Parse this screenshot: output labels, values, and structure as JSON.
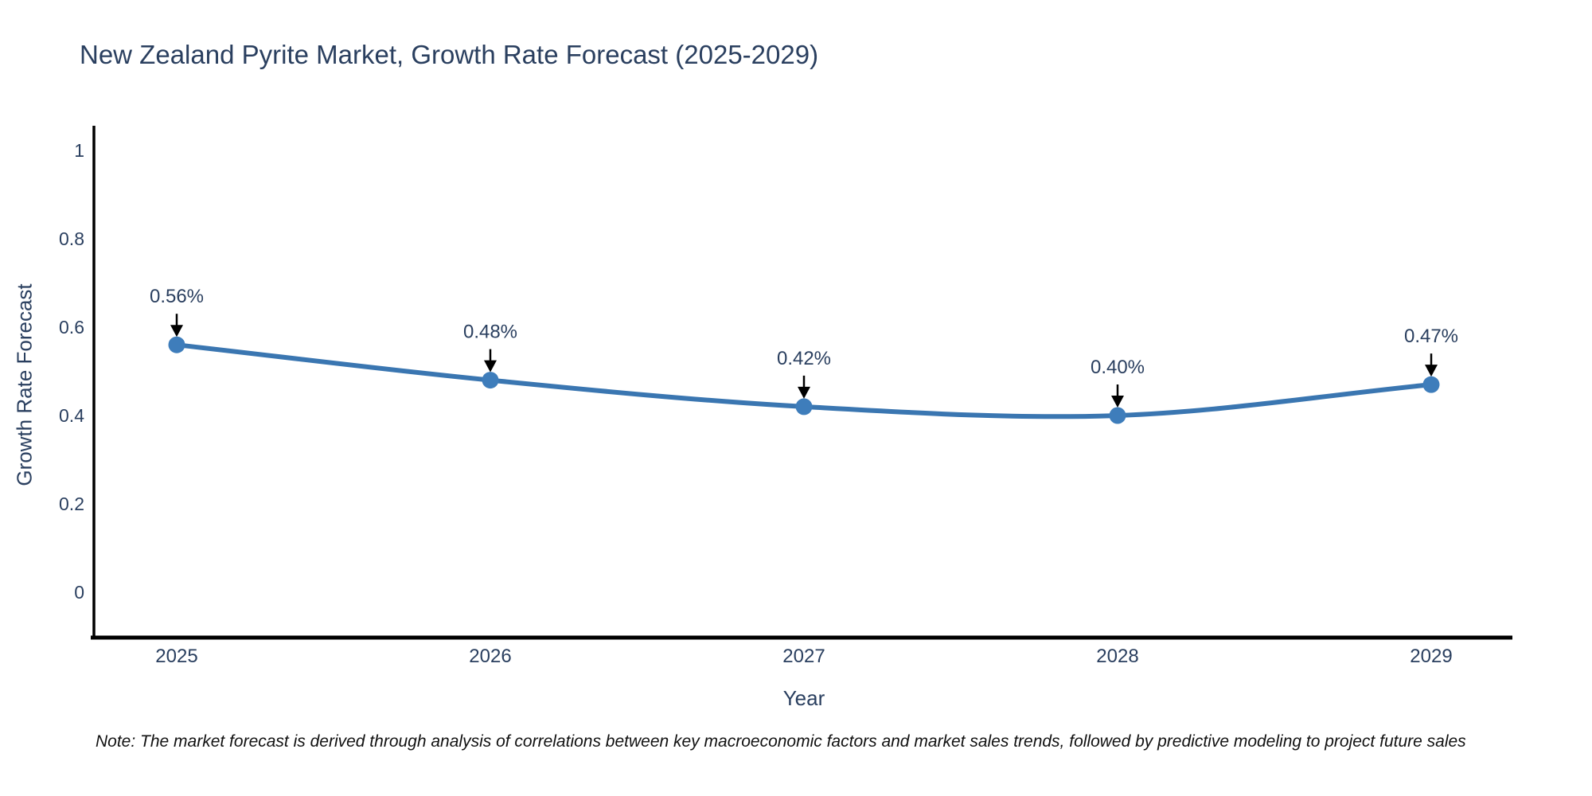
{
  "title": "New Zealand Pyrite Market, Growth Rate Forecast (2025-2029)",
  "note": "Note: The market forecast is derived through analysis of correlations between key macroeconomic factors and market sales trends, followed by predictive modeling to project future sales",
  "chart_data": {
    "type": "line",
    "title": "New Zealand Pyrite Market, Growth Rate Forecast (2025-2029)",
    "xlabel": "Year",
    "ylabel": "Growth Rate Forecast",
    "categories": [
      "2025",
      "2026",
      "2027",
      "2028",
      "2029"
    ],
    "values": [
      0.56,
      0.48,
      0.42,
      0.4,
      0.47
    ],
    "point_labels": [
      "0.56%",
      "0.48%",
      "0.42%",
      "0.40%",
      "0.47%"
    ],
    "yticks": [
      1,
      0.8,
      0.6,
      0.4,
      0.2,
      0
    ],
    "ylim": [
      -0.1,
      1.06
    ],
    "grid": false,
    "legend": "none",
    "line_shape": "spline",
    "colors": {
      "line": "#3a76b1",
      "marker": "#3e7dbb",
      "axis": "#000000",
      "text": "#2a3f5f",
      "arrow": "#000000",
      "background": "#ffffff"
    }
  }
}
